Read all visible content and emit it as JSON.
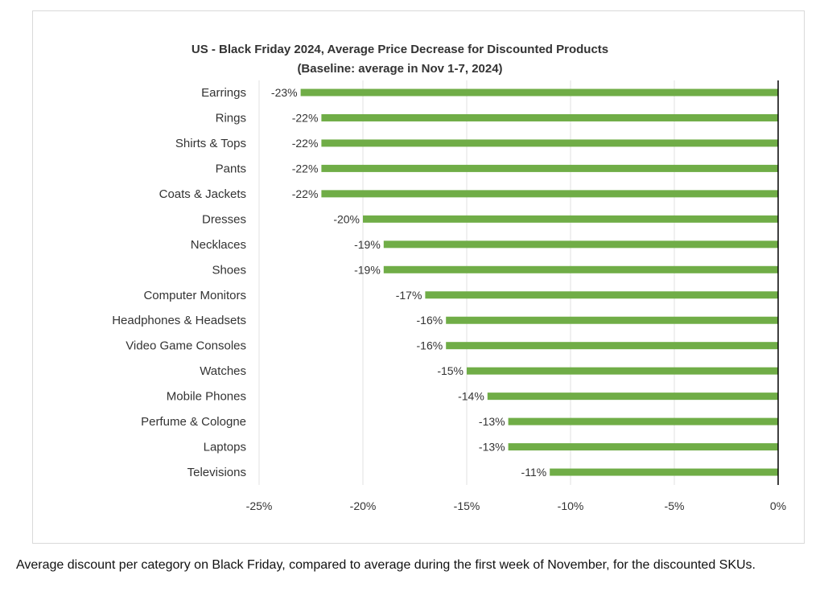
{
  "chart_data": {
    "type": "bar",
    "orientation": "horizontal",
    "title": "US - Black Friday 2024, Average Price Decrease for Discounted Products",
    "subtitle": "(Baseline: average in Nov 1-7, 2024)",
    "categories": [
      "Earrings",
      "Rings",
      "Shirts & Tops",
      "Pants",
      "Coats & Jackets",
      "Dresses",
      "Necklaces",
      "Shoes",
      "Computer Monitors",
      "Headphones & Headsets",
      "Video Game Consoles",
      "Watches",
      "Mobile Phones",
      "Perfume & Cologne",
      "Laptops",
      "Televisions"
    ],
    "values": [
      -23,
      -22,
      -22,
      -22,
      -22,
      -20,
      -19,
      -19,
      -17,
      -16,
      -16,
      -15,
      -14,
      -13,
      -13,
      -11
    ],
    "value_labels": [
      "-23%",
      "-22%",
      "-22%",
      "-22%",
      "-22%",
      "-20%",
      "-19%",
      "-19%",
      "-17%",
      "-16%",
      "-16%",
      "-15%",
      "-14%",
      "-13%",
      "-13%",
      "-11%"
    ],
    "xlim": [
      -25,
      0
    ],
    "x_ticks": [
      -25,
      -20,
      -15,
      -10,
      -5,
      0
    ],
    "x_tick_labels": [
      "-25%",
      "-20%",
      "-15%",
      "-10%",
      "-5%",
      "0%"
    ],
    "grid": "vertical",
    "legend": "none",
    "bar_color": "#70ad47",
    "grid_color": "#e0e0e0",
    "axis_color": "#000000"
  },
  "caption": "Average discount per category on Black Friday, compared to average during the first week of November, for the discounted SKUs."
}
